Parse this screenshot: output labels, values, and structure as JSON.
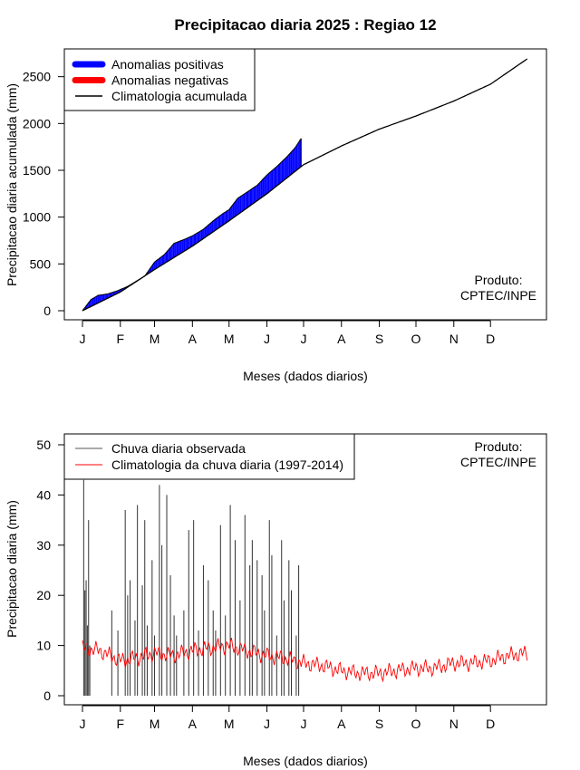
{
  "title": "Precipitacao diaria 2025 : Regiao 12",
  "credit": "Produto:\nCPTEC/INPE",
  "chart_data": [
    {
      "type": "area",
      "ylabel": "Precipitacao diaria acumulada (mm)",
      "xlabel": "Meses (dados diarios)",
      "x_tick_labels": [
        "J",
        "F",
        "M",
        "A",
        "M",
        "J",
        "J",
        "A",
        "S",
        "O",
        "N",
        "D"
      ],
      "xlim": [
        1,
        366
      ],
      "ylim": [
        0,
        2700
      ],
      "y_ticks": [
        0,
        500,
        1000,
        1500,
        2000,
        2500
      ],
      "legend": [
        {
          "label": "Anomalias positivas",
          "color": "#0000ff"
        },
        {
          "label": "Anomalias negativas",
          "color": "#ff0000"
        },
        {
          "label": "Climatologia acumulada",
          "color": "#000000"
        }
      ],
      "legend_position": "top-left",
      "observed_until_day": 180,
      "climatology_cumulative": {
        "day": [
          1,
          32,
          60,
          91,
          121,
          152,
          182,
          213,
          244,
          274,
          305,
          335,
          365
        ],
        "value": [
          0,
          200,
          440,
          690,
          960,
          1250,
          1560,
          1760,
          1940,
          2080,
          2240,
          2420,
          2690
        ]
      },
      "observed_cumulative": {
        "day": [
          1,
          8,
          14,
          22,
          30,
          38,
          45,
          52,
          60,
          68,
          76,
          84,
          91,
          100,
          108,
          115,
          121,
          128,
          136,
          144,
          152,
          160,
          168,
          175,
          180
        ],
        "value": [
          0,
          120,
          165,
          180,
          215,
          260,
          315,
          370,
          520,
          600,
          720,
          760,
          800,
          870,
          960,
          1030,
          1080,
          1200,
          1270,
          1340,
          1450,
          1540,
          1640,
          1740,
          1840
        ]
      }
    },
    {
      "type": "line",
      "ylabel": "Precipitacao diaria (mm)",
      "xlabel": "Meses (dados diarios)",
      "x_tick_labels": [
        "J",
        "F",
        "M",
        "A",
        "M",
        "J",
        "J",
        "A",
        "S",
        "O",
        "N",
        "D"
      ],
      "xlim": [
        1,
        366
      ],
      "ylim": [
        0,
        50
      ],
      "y_ticks": [
        0,
        10,
        20,
        30,
        40,
        50
      ],
      "legend": [
        {
          "label": "Chuva diaria observada",
          "color": "#555555"
        },
        {
          "label": "Climatologia da chuva diaria (1997-2014)",
          "color": "#ff0000"
        }
      ],
      "legend_position": "top-left",
      "observed_daily_peaks": {
        "day": [
          2,
          3,
          4,
          5,
          6,
          7,
          25,
          30,
          36,
          38,
          40,
          44,
          46,
          50,
          52,
          54,
          58,
          60,
          64,
          66,
          70,
          73,
          76,
          78,
          84,
          88,
          92,
          96,
          100,
          104,
          108,
          110,
          114,
          118,
          122,
          126,
          130,
          134,
          138,
          140,
          144,
          148,
          150,
          154,
          156,
          160,
          164,
          166,
          170,
          172,
          176,
          178
        ],
        "value": [
          43,
          21,
          23,
          14,
          35,
          10,
          17,
          13,
          37,
          20,
          23,
          15,
          38,
          22,
          35,
          14,
          27,
          12,
          42,
          30,
          40,
          24,
          16,
          12,
          17,
          33,
          35,
          13,
          26,
          23,
          17,
          13,
          34,
          16,
          38,
          31,
          19,
          36,
          26,
          31,
          27,
          24,
          17,
          35,
          28,
          12,
          31,
          19,
          27,
          21,
          12,
          26
        ]
      },
      "climatology_daily": {
        "day": [
          1,
          15,
          32,
          45,
          60,
          75,
          91,
          105,
          121,
          135,
          152,
          166,
          182,
          197,
          213,
          228,
          244,
          258,
          274,
          289,
          305,
          319,
          335,
          350,
          365
        ],
        "value": [
          9.5,
          9.0,
          7.0,
          7.5,
          8.5,
          8.0,
          9.0,
          9.5,
          10.0,
          9.0,
          8.0,
          7.5,
          6.5,
          6.0,
          5.0,
          4.5,
          4.5,
          5.0,
          5.5,
          5.5,
          6.5,
          6.5,
          7.0,
          8.0,
          8.5
        ]
      }
    }
  ]
}
